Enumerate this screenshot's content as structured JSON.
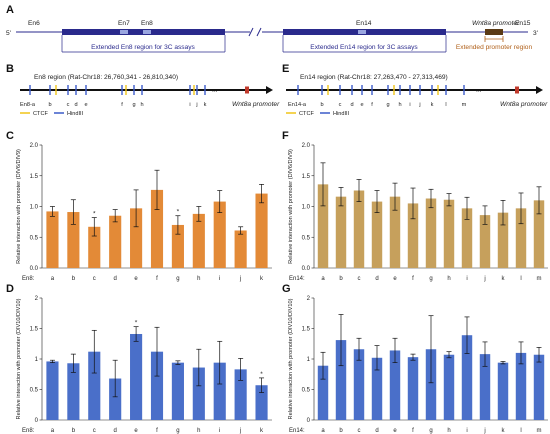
{
  "panelA": {
    "letter": "A",
    "five_prime": "5'",
    "three_prime": "3'",
    "exons": [
      "En6",
      "En7",
      "En8",
      "En14",
      "En15"
    ],
    "wnt8a_promoter": "Wnt8a promoter",
    "ext_en8": "Extended En8 region for 3C assays",
    "ext_en14": "Extended En14 region for 3C assays",
    "ext_promoter": "Extended promoter region"
  },
  "panelB": {
    "letter": "B",
    "title": "En8 region (Rat-Chr18: 26,760,341 - 26,810,340)",
    "sites": [
      "En8-a",
      "b",
      "c",
      "d",
      "e",
      "f",
      "g",
      "h",
      "i",
      "j",
      "k"
    ],
    "promoter": "Wnt8a promoter",
    "legend_ctcf": "CTCF",
    "legend_hind": "HindIII"
  },
  "panelE": {
    "letter": "E",
    "title": "En14 region (Rat-Chr18: 27,263,470 - 27,313,469)",
    "sites": [
      "En14-a",
      "b",
      "c",
      "d",
      "e",
      "f",
      "g",
      "h",
      "i",
      "j",
      "k",
      "l",
      "m"
    ],
    "promoter": "Wnt8a promoter",
    "legend_ctcf": "CTCF",
    "legend_hind": "HindIII"
  },
  "chart_data": [
    {
      "panel": "C",
      "type": "bar",
      "ylabel": "Relative interaction with promoter (DIV6/DIV9)",
      "xlabel": "En8:",
      "ylim": [
        0,
        2.0
      ],
      "yticks": [
        "0.0",
        "0.5",
        "1.0",
        "1.5",
        "2.0"
      ],
      "categories": [
        "a",
        "b",
        "c",
        "d",
        "e",
        "f",
        "g",
        "h",
        "i",
        "j",
        "k"
      ],
      "red_categories": [
        "c",
        "g"
      ],
      "values": [
        0.92,
        0.91,
        0.67,
        0.85,
        0.97,
        1.27,
        0.7,
        0.88,
        1.08,
        0.61,
        1.21
      ],
      "errors": [
        0.08,
        0.2,
        0.15,
        0.1,
        0.3,
        0.32,
        0.15,
        0.12,
        0.18,
        0.06,
        0.15
      ],
      "significant": [
        "c",
        "g"
      ],
      "color": "#e38a37"
    },
    {
      "panel": "D",
      "type": "bar",
      "ylabel": "Relative interaction with promoter (DIV10/DIV10)",
      "xlabel": "En8:",
      "ylim": [
        0,
        2.0
      ],
      "yticks": [
        "0",
        "0.5",
        "1",
        "1.5",
        "2"
      ],
      "categories": [
        "a",
        "b",
        "c",
        "d",
        "e",
        "f",
        "g",
        "h",
        "i",
        "j",
        "k"
      ],
      "red_categories": [
        "c",
        "g"
      ],
      "values": [
        0.96,
        0.93,
        1.12,
        0.68,
        1.41,
        1.12,
        0.94,
        0.86,
        0.94,
        0.83,
        0.57
      ],
      "errors": [
        0.02,
        0.15,
        0.35,
        0.3,
        0.12,
        0.4,
        0.03,
        0.3,
        0.35,
        0.18,
        0.12
      ],
      "significant": [
        "e",
        "k"
      ],
      "color": "#4a6fc9"
    },
    {
      "panel": "F",
      "type": "bar",
      "ylabel": "Relative interaction with promoter (DIV6/DIV9)",
      "xlabel": "En14:",
      "ylim": [
        0,
        2.0
      ],
      "yticks": [
        "0.0",
        "0.5",
        "1.0",
        "1.5",
        "2.0"
      ],
      "categories": [
        "a",
        "b",
        "c",
        "d",
        "e",
        "f",
        "g",
        "h",
        "i",
        "j",
        "k",
        "l",
        "m"
      ],
      "red_categories": [],
      "values": [
        1.36,
        1.16,
        1.26,
        1.08,
        1.16,
        1.05,
        1.13,
        1.11,
        0.97,
        0.86,
        0.9,
        0.97,
        1.1
      ],
      "errors": [
        0.35,
        0.15,
        0.18,
        0.18,
        0.22,
        0.25,
        0.15,
        0.1,
        0.18,
        0.15,
        0.2,
        0.25,
        0.22
      ],
      "significant": [],
      "color": "#c6a05c"
    },
    {
      "panel": "G",
      "type": "bar",
      "ylabel": "Relative interaction with promoter (DIV10/DIV10)",
      "xlabel": "En14:",
      "ylim": [
        0,
        2.0
      ],
      "yticks": [
        "0",
        "0.5",
        "1",
        "1.5",
        "2"
      ],
      "categories": [
        "a",
        "b",
        "c",
        "d",
        "e",
        "f",
        "g",
        "h",
        "i",
        "j",
        "k",
        "l",
        "m"
      ],
      "red_categories": [],
      "values": [
        0.89,
        1.31,
        1.16,
        1.02,
        1.14,
        1.03,
        1.16,
        1.07,
        1.39,
        1.08,
        0.94,
        1.1,
        1.07
      ],
      "errors": [
        0.22,
        0.42,
        0.18,
        0.2,
        0.2,
        0.05,
        0.55,
        0.05,
        0.3,
        0.2,
        0.02,
        0.18,
        0.12
      ],
      "significant": [],
      "color": "#4a6fc9"
    }
  ]
}
